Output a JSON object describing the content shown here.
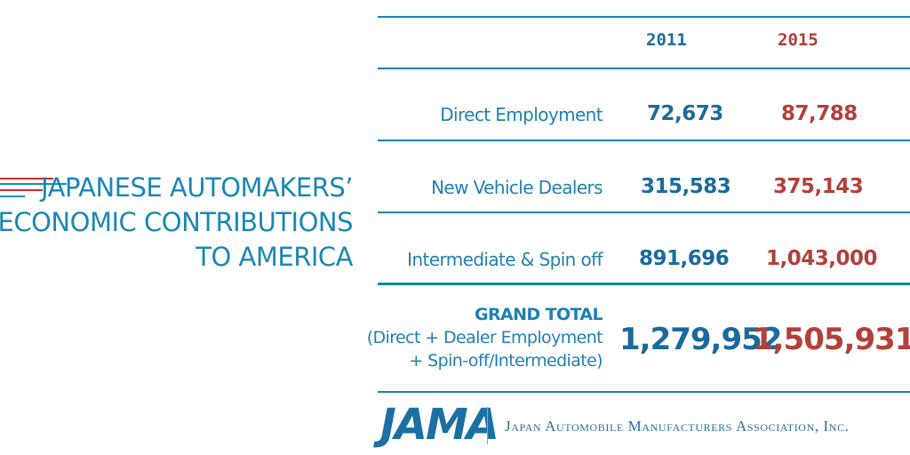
{
  "title": {
    "lines": [
      "JAPANESE AUTOMAKERS’",
      "ECONOMIC CONTRIBUTIONS",
      "TO AMERICA"
    ]
  },
  "table": {
    "years": [
      "2011",
      "2015"
    ],
    "rows": [
      {
        "label": "Direct Employment",
        "v2011": "72,673",
        "v2015": "87,788"
      },
      {
        "label": "New Vehicle Dealers",
        "v2011": "315,583",
        "v2015": "375,143"
      },
      {
        "label": "Intermediate & Spin off",
        "v2011": "891,696",
        "v2015": "1,043,000"
      }
    ],
    "grand_total": {
      "heading": "GRAND TOTAL",
      "sub1": "(Direct + Dealer Employment",
      "sub2": "+ Spin-off/Intermediate)",
      "v2011": "1,279,952",
      "v2015": "1,505,931"
    }
  },
  "footer": {
    "logo": "JAMA",
    "association": "Japan Automobile Manufacturers Association, Inc."
  },
  "colors": {
    "teal": "#1b87b4",
    "navy": "#1c6a9c",
    "red": "#b2403b"
  }
}
